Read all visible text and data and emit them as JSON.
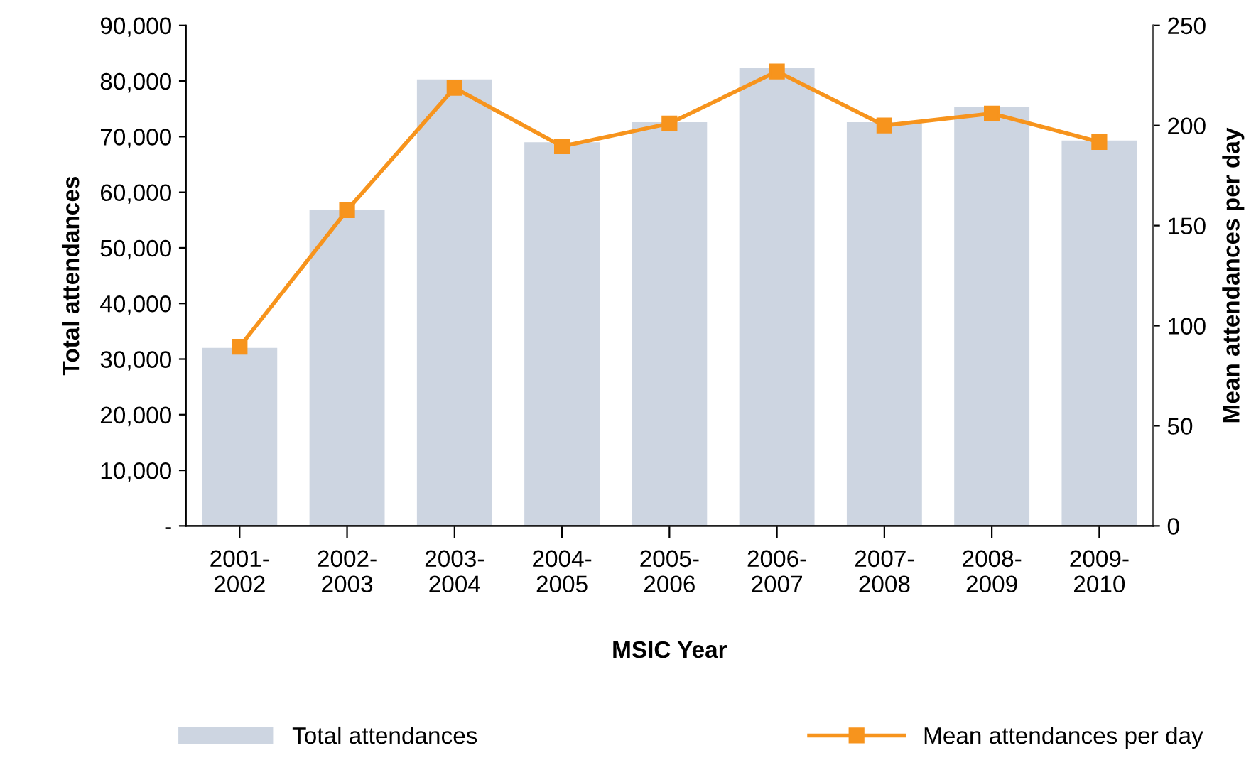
{
  "chart_data": {
    "type": "bar",
    "xlabel": "MSIC Year",
    "ylabel": "Total attendances",
    "y2label": "Mean attendances per day",
    "categories": [
      "2001-\n2002",
      "2002-\n2003",
      "2003-\n2004",
      "2004-\n2005",
      "2005-\n2006",
      "2006-\n2007",
      "2007-\n2008",
      "2008-\n2009",
      "2009-\n2010"
    ],
    "series": [
      {
        "name": "Total attendances",
        "color": "#cdd5e1",
        "values": [
          32000,
          56800,
          80300,
          69000,
          72600,
          82300,
          72600,
          75400,
          69300
        ]
      },
      {
        "name": "Mean attendances per day",
        "type": "line",
        "axis": "y2",
        "color": "#f7941d",
        "marker": "square",
        "values": [
          89.5,
          157.7,
          218.8,
          189.6,
          201,
          227,
          200,
          206,
          191.8
        ]
      }
    ],
    "ylim": [
      0,
      90000
    ],
    "yticks": [
      {
        "value": 0,
        "label": "-"
      },
      {
        "value": 10000,
        "label": "10,000"
      },
      {
        "value": 20000,
        "label": "20,000"
      },
      {
        "value": 30000,
        "label": "30,000"
      },
      {
        "value": 40000,
        "label": "40,000"
      },
      {
        "value": 50000,
        "label": "50,000"
      },
      {
        "value": 60000,
        "label": "60,000"
      },
      {
        "value": 70000,
        "label": "70,000"
      },
      {
        "value": 80000,
        "label": "80,000"
      },
      {
        "value": 90000,
        "label": "90,000"
      }
    ],
    "y2lim": [
      0,
      250
    ],
    "y2ticks": [
      0,
      50,
      100,
      150,
      200,
      250
    ],
    "legend": "bottom",
    "grid": false
  }
}
